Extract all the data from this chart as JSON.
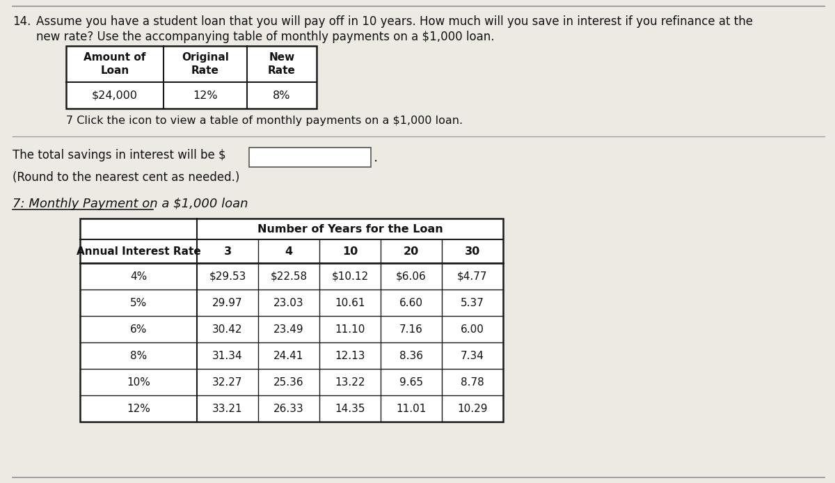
{
  "background_color": "#ede9e3",
  "question_number": "14.",
  "question_text_line1": "Assume you have a student loan that you will pay off in 10 years. How much will you save in interest if you refinance at the",
  "question_text_line2": "new rate? Use the accompanying table of monthly payments on a $1,000 loan.",
  "small_table_headers": [
    "Amount of\nLoan",
    "Original\nRate",
    "New\nRate"
  ],
  "small_table_data": [
    "$24,000",
    "12%",
    "8%"
  ],
  "footnote_text": "7 Click the icon to view a table of monthly payments on a $1,000 loan.",
  "answer_line1": "The total savings in interest will be $",
  "answer_line2": "(Round to the nearest cent as needed.)",
  "big_table_title": "7: Monthly Payment on a $1,000 loan",
  "big_table_col_header": "Number of Years for the Loan",
  "big_table_row_header": "Annual Interest Rate",
  "big_table_col_nums": [
    "3",
    "4",
    "10",
    "20",
    "30"
  ],
  "big_table_data": [
    [
      "4%",
      "$29.53",
      "$22.58",
      "$10.12",
      "$6.06",
      "$4.77"
    ],
    [
      "5%",
      "29.97",
      "23.03",
      "10.61",
      "6.60",
      "5.37"
    ],
    [
      "6%",
      "30.42",
      "23.49",
      "11.10",
      "7.16",
      "6.00"
    ],
    [
      "8%",
      "31.34",
      "24.41",
      "12.13",
      "8.36",
      "7.34"
    ],
    [
      "10%",
      "32.27",
      "25.36",
      "13.22",
      "9.65",
      "8.78"
    ],
    [
      "12%",
      "33.21",
      "26.33",
      "14.35",
      "11.01",
      "10.29"
    ]
  ],
  "top_line_color": "#999999",
  "table_border_color": "#1a1a1a",
  "text_color": "#111111"
}
